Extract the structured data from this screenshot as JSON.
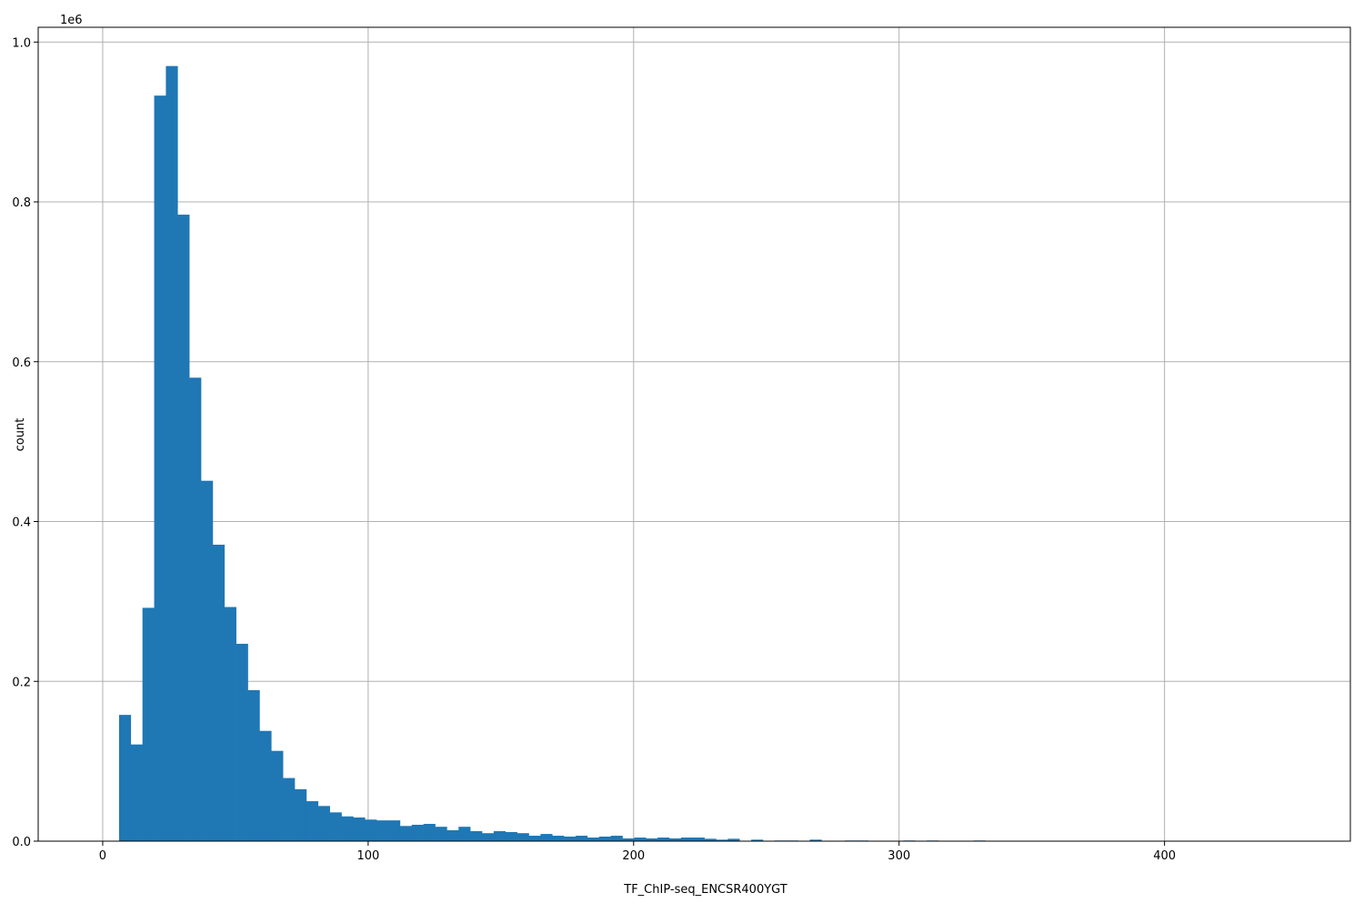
{
  "chart_data": {
    "type": "bar",
    "subtype": "histogram",
    "title": "",
    "xlabel": "TF_ChIP-seq_ENCSR400YGT",
    "ylabel": "count",
    "y_offset_label": "1e6",
    "xlim": [
      -24.3,
      470
    ],
    "ylim": [
      0,
      1.0185
    ],
    "y_scale_factor": 1000000,
    "grid": true,
    "bar_color": "#1f77b4",
    "bin_start": 6.16,
    "bin_width": 4.41,
    "values": [
      158000,
      121000,
      292000,
      933000,
      970000,
      784000,
      580000,
      451000,
      371000,
      293000,
      247000,
      189000,
      138000,
      113000,
      79000,
      65000,
      50000,
      44000,
      36000,
      31000,
      29600,
      27000,
      26000,
      26000,
      19000,
      20500,
      21600,
      18000,
      13700,
      18000,
      12500,
      10000,
      12500,
      11400,
      10000,
      6800,
      9000,
      6800,
      5700,
      6800,
      4500,
      5700,
      6800,
      3400,
      4500,
      3400,
      4500,
      3400,
      4500,
      4500,
      3000,
      1900,
      3000,
      0,
      1900,
      0,
      800,
      800,
      0,
      1900,
      0,
      0,
      800,
      800,
      0,
      0,
      0,
      800,
      0,
      800,
      0,
      0,
      0,
      800
    ],
    "xticks": [
      0,
      100,
      200,
      300,
      400
    ],
    "xtick_labels": [
      "0",
      "100",
      "200",
      "300",
      "400"
    ],
    "yticks": [
      0,
      0.2,
      0.4,
      0.6,
      0.8,
      1.0
    ],
    "ytick_labels": [
      "0.0",
      "0.2",
      "0.4",
      "0.6",
      "0.8",
      "1.0"
    ]
  }
}
